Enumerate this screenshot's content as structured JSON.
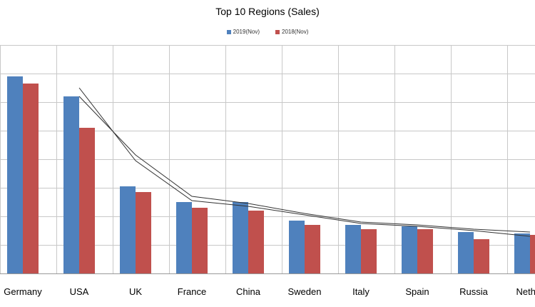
{
  "chart_data": {
    "type": "bar",
    "title": "Top 10 Regions (Sales)",
    "categories": [
      "Germany",
      "USA",
      "UK",
      "France",
      "China",
      "Sweden",
      "Italy",
      "Spain",
      "Russia",
      "Nether"
    ],
    "series": [
      {
        "name": "2019(Nov)",
        "color": "#4f81bd",
        "values": [
          6.9,
          6.2,
          3.05,
          2.5,
          2.5,
          1.85,
          1.7,
          1.65,
          1.45,
          1.4
        ]
      },
      {
        "name": "2018(Nov)",
        "color": "#c0504d",
        "values": [
          6.65,
          5.1,
          2.85,
          2.3,
          2.2,
          1.7,
          1.55,
          1.55,
          1.2,
          1.35
        ]
      }
    ],
    "trendlines": [
      {
        "values": [
          null,
          6.5,
          3.95,
          2.55,
          2.35,
          2.05,
          1.75,
          1.65,
          1.5,
          1.3
        ]
      },
      {
        "values": [
          null,
          6.2,
          4.15,
          2.7,
          2.45,
          2.1,
          1.8,
          1.7,
          1.55,
          1.45
        ]
      }
    ],
    "ylim": [
      0,
      8
    ],
    "grid": true,
    "legend_position": "top-center"
  }
}
